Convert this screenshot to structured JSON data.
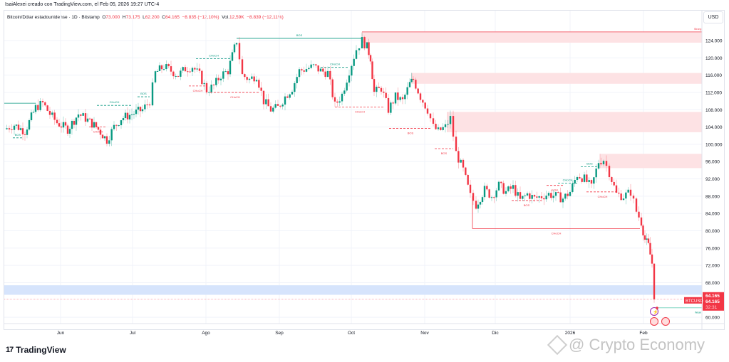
{
  "credit": "IsaiAlexei creado con TradingView.com, el Feb 05, 2026 19:27 UTC-4",
  "legend": {
    "symbol": "Bitcoin/Dólar estadounidense · 1D · Bitstamp",
    "open_label": "O",
    "open": "73.000",
    "high_label": "H",
    "high": "73.175",
    "low_label": "L",
    "low": "62.200",
    "close_label": "C",
    "close": "64.165",
    "change": "−8.835 (−12,10%)",
    "vol_label": "Vol.",
    "vol": "12,59K",
    "vol_change": "−8.839 (−12,11%)"
  },
  "currency": "USD",
  "price_tag": {
    "symbol": "BTCUSD",
    "price": "64.165",
    "countdown": "32:31",
    "color": "#f23645"
  },
  "branding": {
    "tradingview": "TradingView",
    "logo": "17",
    "watermark": "@ Crypto Economy"
  },
  "colors": {
    "up": "#089981",
    "down": "#f23645",
    "supply_zone": "#fde2e4",
    "demand_zone": "#d6e4fc",
    "grid": "#f0f3fa"
  },
  "chart_data": {
    "type": "candlestick",
    "title": "Bitcoin/Dólar estadounidense · 1D · Bitstamp",
    "xlabel": "",
    "ylabel": "USD",
    "ylim": [
      58000,
      128000
    ],
    "y_ticks": [
      "124.000",
      "120.000",
      "116.000",
      "112.000",
      "108.000",
      "104.000",
      "100.000",
      "96.000",
      "92.000",
      "88.000",
      "84.000",
      "80.000",
      "76.000",
      "72.000",
      "68.000",
      "60.000"
    ],
    "x_ticks": [
      "Jun",
      "Jul",
      "Ago",
      "Sep",
      "Oct",
      "Nov",
      "Dic",
      "2026",
      "Feb"
    ],
    "last_price": 64165,
    "approx_closes_by_month": [
      {
        "month": "May 2025 (late)",
        "close": 104000
      },
      {
        "month": "Jun",
        "close": 107000
      },
      {
        "month": "Jul",
        "close": 118000
      },
      {
        "month": "Ago",
        "close": 110000
      },
      {
        "month": "Sep",
        "close": 114000
      },
      {
        "month": "Oct",
        "close": 110000
      },
      {
        "month": "Nov",
        "close": 91000
      },
      {
        "month": "Dic",
        "close": 88000
      },
      {
        "month": "2026 Jan",
        "close": 88000
      },
      {
        "month": "Feb",
        "close": 64165
      }
    ],
    "zones": [
      {
        "type": "supply",
        "label": "Strong",
        "from": 123500,
        "to": 126000
      },
      {
        "type": "supply",
        "from": 114000,
        "to": 116500
      },
      {
        "type": "supply",
        "from": 102800,
        "to": 107500
      },
      {
        "type": "supply",
        "from": 94500,
        "to": 97800
      },
      {
        "type": "demand",
        "from": 65200,
        "to": 67400
      }
    ],
    "annotations": [
      {
        "text": "BOS",
        "color": "up",
        "price": 101500
      },
      {
        "text": "CHoCH",
        "color": "up",
        "price": 109000
      },
      {
        "text": "CHoCH",
        "color": "down",
        "price": 104000
      },
      {
        "text": "BOS",
        "color": "up",
        "price": 111000
      },
      {
        "text": "CHoCH",
        "color": "up",
        "price": 119800
      },
      {
        "text": "CHoCH",
        "color": "down",
        "price": 113500
      },
      {
        "text": "CHoCH",
        "color": "down",
        "price": 112000
      },
      {
        "text": "BOS",
        "color": "up",
        "price": 124500
      },
      {
        "text": "CHoCH",
        "color": "up",
        "price": 117800
      },
      {
        "text": "CHoCH",
        "color": "down",
        "price": 108600
      },
      {
        "text": "BOS",
        "color": "down",
        "price": 103700
      },
      {
        "text": "BOS",
        "color": "down",
        "price": 99000
      },
      {
        "text": "BOS",
        "color": "down",
        "price": 87000
      },
      {
        "text": "EQH",
        "color": "down",
        "price": 90500
      },
      {
        "text": "CHoCH",
        "color": "up",
        "price": 91000
      },
      {
        "text": "BOS",
        "color": "up",
        "price": 94800
      },
      {
        "text": "CHoCH",
        "color": "down",
        "price": 89000
      },
      {
        "text": "CHoCH",
        "color": "down",
        "price": 80500
      },
      {
        "text": "Weak",
        "color": "up",
        "price": 62200
      }
    ]
  }
}
